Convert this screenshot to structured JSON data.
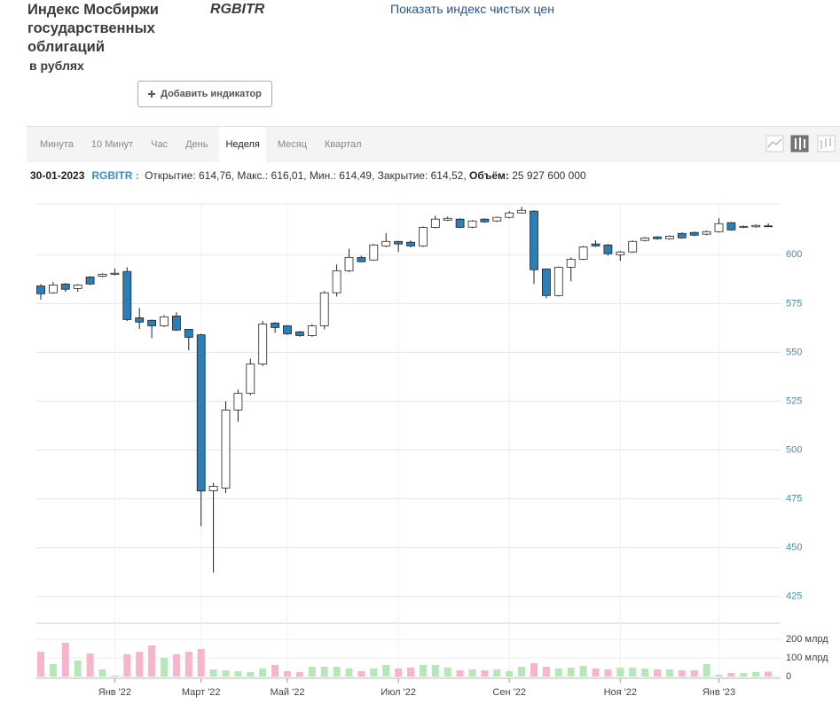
{
  "header": {
    "title": "Индекс Мосбиржи государственных облигаций",
    "subtitle": "в рублях",
    "ticker": "RGBITR",
    "link": "Показать индекс чистых цен",
    "add_button": "Добавить индикатор"
  },
  "tabs": [
    "Минута",
    "10 Минут",
    "Час",
    "День",
    "Неделя",
    "Месяц",
    "Квартал"
  ],
  "active_tab": 4,
  "info": {
    "date": "30-01-2023",
    "ticker": "RGBITR :",
    "text": "Открытие: 614,76, Макс.: 616,01, Мин.: 614,49, Закрытие: 614,52,",
    "volume_label": "Объём:",
    "volume": "25 927 600 000"
  },
  "chart_data": {
    "type": "candlestick",
    "categories": [
      null,
      null,
      null,
      null,
      null,
      null,
      "Янв '22",
      null,
      null,
      null,
      null,
      null,
      null,
      "Март '22",
      null,
      null,
      null,
      null,
      null,
      null,
      "Май '22",
      null,
      null,
      null,
      null,
      null,
      null,
      null,
      null,
      "Июл '22",
      null,
      null,
      null,
      null,
      null,
      null,
      null,
      null,
      "Сен '22",
      null,
      null,
      null,
      null,
      null,
      null,
      null,
      null,
      "Ноя '22",
      null,
      null,
      null,
      null,
      null,
      null,
      null,
      "Янв '23",
      null,
      null,
      null,
      null
    ],
    "open": [
      584,
      580.5,
      585,
      582.7,
      588.6,
      589,
      590,
      591.4,
      567.7,
      566.4,
      563.6,
      568.6,
      561.8,
      559,
      479.1,
      480.5,
      520.5,
      529,
      544,
      565,
      563.6,
      560.5,
      558.6,
      563.6,
      580.5,
      591.8,
      598.6,
      597.3,
      604.5,
      606.8,
      606.4,
      604.5,
      614,
      617.7,
      618.2,
      614.1,
      618.2,
      617.3,
      619.1,
      621.4,
      622.3,
      592.7,
      579.1,
      593.6,
      597.7,
      605.5,
      605,
      600,
      601.4,
      607.3,
      609.1,
      608.2,
      610.9,
      611.4,
      610.5,
      611.8,
      616.4,
      614.1,
      614.3,
      614.76
    ],
    "high": [
      585,
      586,
      585.5,
      585,
      589,
      590.5,
      593,
      593.6,
      572.7,
      566.8,
      569,
      570.5,
      562,
      559.5,
      483.2,
      525,
      531,
      546.8,
      566,
      565.5,
      564,
      561,
      564.5,
      581.4,
      595,
      603,
      599.5,
      605.5,
      611,
      607,
      607.3,
      614.5,
      620,
      619.5,
      618.6,
      617.7,
      618.6,
      619.5,
      622.3,
      624.5,
      622.7,
      593,
      594,
      598.6,
      604.5,
      607.3,
      605.5,
      602,
      607.3,
      609.1,
      609.5,
      610,
      611.4,
      611.8,
      612.3,
      618.6,
      616.8,
      615,
      615.5,
      616.01
    ],
    "low": [
      577,
      580,
      581,
      581,
      584.5,
      588.5,
      589.5,
      566,
      562,
      557.3,
      563,
      561,
      551,
      461,
      437.3,
      478,
      514.5,
      528,
      543,
      560,
      559,
      558,
      558,
      561.8,
      578.6,
      591,
      596.2,
      597,
      604,
      601.4,
      603.8,
      604,
      613.6,
      617.3,
      613.6,
      613.6,
      616.4,
      616.8,
      618.6,
      621,
      585,
      577.7,
      578.6,
      586.4,
      597.3,
      604,
      599.5,
      596.8,
      601,
      606.8,
      607.7,
      607.7,
      608.2,
      609.5,
      610,
      611.4,
      612.3,
      613.6,
      613.8,
      614.49
    ],
    "close": [
      580,
      584.5,
      582.3,
      584.5,
      585,
      590,
      590.5,
      566.8,
      565.5,
      563.6,
      568.2,
      561.4,
      557.7,
      479,
      481.4,
      520.5,
      529,
      544,
      564.5,
      562.7,
      559.5,
      558.6,
      563.6,
      580.5,
      591.8,
      598.6,
      596.4,
      605,
      606.8,
      605.5,
      604.5,
      614,
      618.2,
      618.6,
      614,
      617.3,
      616.8,
      619.1,
      621.4,
      622.7,
      592.3,
      579.1,
      593.6,
      597.7,
      604,
      604.5,
      600.5,
      601.4,
      606.8,
      608.6,
      608.2,
      609.5,
      608.6,
      610,
      611.8,
      615.9,
      612.7,
      614.5,
      615,
      614.52
    ],
    "volume": [
      133,
      67,
      181,
      86,
      124,
      38,
      5,
      119,
      133,
      167,
      100,
      119,
      133,
      148,
      38,
      33,
      29,
      24,
      43,
      62,
      29,
      24,
      52,
      52,
      52,
      43,
      29,
      43,
      62,
      43,
      48,
      62,
      62,
      48,
      33,
      38,
      33,
      38,
      29,
      52,
      71,
      52,
      43,
      48,
      57,
      43,
      38,
      48,
      48,
      43,
      38,
      38,
      33,
      33,
      67,
      10,
      19,
      19,
      24,
      25.93
    ],
    "ylim": [
      414,
      626
    ],
    "yticks": [
      425,
      450,
      475,
      500,
      525,
      550,
      575,
      600
    ],
    "vol_ylim": [
      0,
      276
    ],
    "vol_yticks": [
      0,
      {
        "value": 100,
        "label": "100 млрд"
      },
      {
        "value": 200,
        "label": "200 млрд"
      }
    ],
    "up_color": "#ffffff",
    "down_color": "#2b7fb9",
    "vol_up_color": "#b6e7b6",
    "vol_down_color": "#f6b5c9",
    "grid": true
  }
}
